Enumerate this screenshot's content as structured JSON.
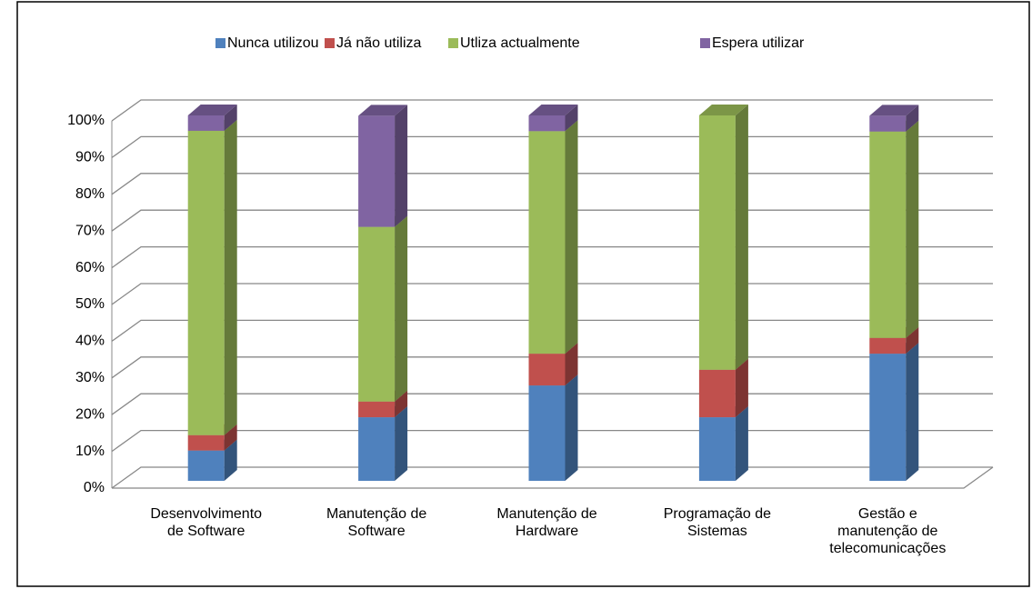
{
  "chart_data": {
    "type": "bar3d_stacked",
    "categories": [
      "Desenvolvimento\nde Software",
      "Manutenção de\nSoftware",
      "Manutenção de\nHardware",
      "Programação de\nSistemas",
      "Gestão e\nmanutenção de\ntelecomunicações"
    ],
    "series": [
      {
        "name": "Nunca utilizou",
        "color": "#4f81bd",
        "values": [
          8.3,
          17.4,
          26.1,
          17.4,
          34.8
        ]
      },
      {
        "name": "Já não utiliza",
        "color": "#c0504d",
        "values": [
          4.2,
          4.3,
          8.7,
          13.0,
          4.3
        ]
      },
      {
        "name": "Utliza actualmente",
        "color": "#9bbb59",
        "values": [
          83.3,
          47.8,
          60.9,
          69.6,
          56.5
        ]
      },
      {
        "name": "Espera utilizar",
        "color": "#8064a2",
        "values": [
          4.2,
          30.4,
          4.3,
          0,
          4.3
        ]
      }
    ],
    "ylim": [
      0,
      100
    ],
    "yticks": [
      {
        "value": 0,
        "label": "0%"
      },
      {
        "value": 10,
        "label": "10%"
      },
      {
        "value": 20,
        "label": "20%"
      },
      {
        "value": 30,
        "label": "30%"
      },
      {
        "value": 40,
        "label": "40%"
      },
      {
        "value": 50,
        "label": "50%"
      },
      {
        "value": 60,
        "label": "60%"
      },
      {
        "value": 70,
        "label": "70%"
      },
      {
        "value": 80,
        "label": "80%"
      },
      {
        "value": 90,
        "label": "90%"
      },
      {
        "value": 100,
        "label": "100%"
      }
    ],
    "grid": true,
    "legend": "top"
  }
}
